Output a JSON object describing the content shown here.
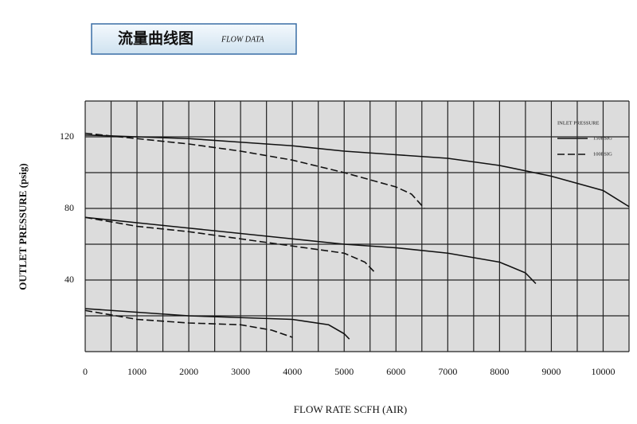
{
  "chart_data": {
    "type": "line",
    "title": "流量曲线图",
    "subtitle": "FLOW DATA",
    "x_label": "FLOW RATE SCFH (AIR)",
    "y_label": "OUTLET PRESSURE (psig)",
    "xlim": [
      0,
      10500
    ],
    "ylim": [
      0,
      140
    ],
    "xticks": [
      0,
      1000,
      2000,
      3000,
      4000,
      5000,
      6000,
      7000,
      8000,
      9000,
      10000
    ],
    "yticks": [
      40,
      80,
      120
    ],
    "xgrid": [
      0,
      500,
      1000,
      1500,
      2000,
      2500,
      3000,
      3500,
      4000,
      4500,
      5000,
      5500,
      6000,
      6500,
      7000,
      7500,
      8000,
      8500,
      9000,
      9500,
      10000,
      10500
    ],
    "ygrid": [
      0,
      20,
      40,
      60,
      80,
      100,
      120,
      140
    ],
    "legend": {
      "title": "INLET PRESSURE",
      "entries": [
        {
          "label": "150PSIG",
          "style": "solid"
        },
        {
          "label": "100PSIG",
          "style": "dashed"
        }
      ]
    },
    "series": [
      {
        "style": "solid",
        "color": "#111111",
        "x": [
          0,
          1000,
          2000,
          3000,
          4000,
          5000,
          6000,
          7000,
          8000,
          9000,
          10000,
          10500
        ],
        "values": [
          121,
          120,
          119,
          117,
          115,
          112,
          110,
          108,
          104,
          98,
          90,
          81
        ]
      },
      {
        "style": "dashed",
        "color": "#111111",
        "x": [
          0,
          1000,
          2000,
          3000,
          4000,
          5000,
          5500,
          6000,
          6300,
          6550
        ],
        "values": [
          122,
          119,
          116,
          112,
          107,
          100,
          96,
          92,
          88,
          80
        ]
      },
      {
        "style": "solid",
        "color": "#111111",
        "x": [
          0,
          1000,
          2000,
          3000,
          4000,
          5000,
          6000,
          7000,
          8000,
          8500,
          8700
        ],
        "values": [
          75,
          72,
          69,
          66,
          63,
          60,
          58,
          55,
          50,
          44,
          38
        ]
      },
      {
        "style": "dashed",
        "color": "#111111",
        "x": [
          0,
          1000,
          2000,
          3000,
          4000,
          5000,
          5400,
          5600
        ],
        "values": [
          75,
          70,
          67,
          63,
          59,
          55,
          50,
          44
        ]
      },
      {
        "style": "solid",
        "color": "#111111",
        "x": [
          0,
          1000,
          2000,
          3000,
          4000,
          4700,
          5000,
          5100
        ],
        "values": [
          24,
          22,
          20,
          19,
          18,
          15,
          10,
          7
        ]
      },
      {
        "style": "dashed",
        "color": "#111111",
        "x": [
          0,
          1000,
          2000,
          3000,
          3600,
          4000
        ],
        "values": [
          23,
          18,
          16,
          15,
          12,
          8
        ]
      }
    ]
  }
}
